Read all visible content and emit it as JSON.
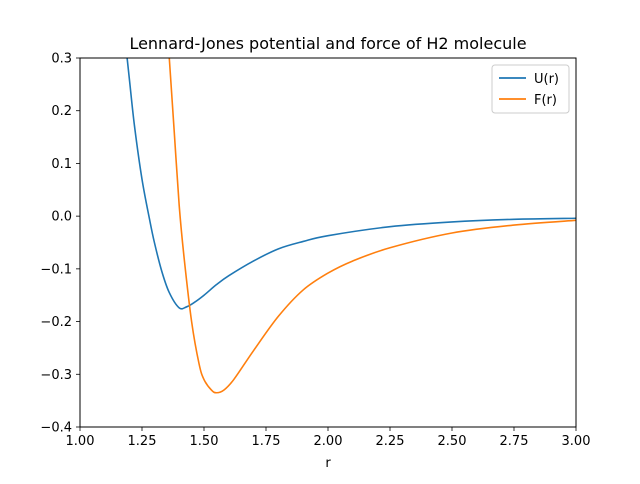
{
  "chart_data": {
    "type": "line",
    "title": "Lennard-Jones potential and force of H2 molecule",
    "xlabel": "r",
    "ylabel": "",
    "xlim": [
      1.0,
      3.0
    ],
    "ylim": [
      -0.4,
      0.3
    ],
    "xticks": [
      1.0,
      1.25,
      1.5,
      1.75,
      2.0,
      2.25,
      2.5,
      2.75,
      3.0
    ],
    "xtick_labels": [
      "1.00",
      "1.25",
      "1.50",
      "1.75",
      "2.00",
      "2.25",
      "2.50",
      "2.75",
      "3.00"
    ],
    "yticks": [
      -0.4,
      -0.3,
      -0.2,
      -0.1,
      0.0,
      0.1,
      0.2,
      0.3
    ],
    "ytick_labels": [
      "−0.4",
      "−0.3",
      "−0.2",
      "−0.1",
      "0.0",
      "0.1",
      "0.2",
      "0.3"
    ],
    "grid": false,
    "legend_position": "top-right",
    "series": [
      {
        "name": "U(r)",
        "color": "#1f77b4",
        "x": [
          1.19,
          1.2,
          1.22,
          1.25,
          1.28,
          1.3,
          1.33,
          1.36,
          1.4,
          1.43,
          1.46,
          1.5,
          1.55,
          1.6,
          1.7,
          1.8,
          1.9,
          2.0,
          2.25,
          2.5,
          2.75,
          3.0
        ],
        "y": [
          0.3,
          0.256,
          0.17,
          0.07,
          -0.005,
          -0.05,
          -0.105,
          -0.145,
          -0.174,
          -0.172,
          -0.164,
          -0.15,
          -0.13,
          -0.113,
          -0.085,
          -0.062,
          -0.048,
          -0.037,
          -0.02,
          -0.011,
          -0.006,
          -0.004
        ]
      },
      {
        "name": "F(r)",
        "color": "#ff7f0e",
        "x": [
          1.36,
          1.38,
          1.4,
          1.42,
          1.45,
          1.48,
          1.5,
          1.53,
          1.55,
          1.58,
          1.62,
          1.7,
          1.8,
          1.9,
          2.0,
          2.1,
          2.25,
          2.5,
          2.75,
          3.0
        ],
        "y": [
          0.3,
          0.16,
          0.02,
          -0.08,
          -0.2,
          -0.28,
          -0.31,
          -0.33,
          -0.335,
          -0.33,
          -0.31,
          -0.255,
          -0.19,
          -0.14,
          -0.108,
          -0.085,
          -0.06,
          -0.032,
          -0.017,
          -0.008
        ]
      }
    ]
  }
}
